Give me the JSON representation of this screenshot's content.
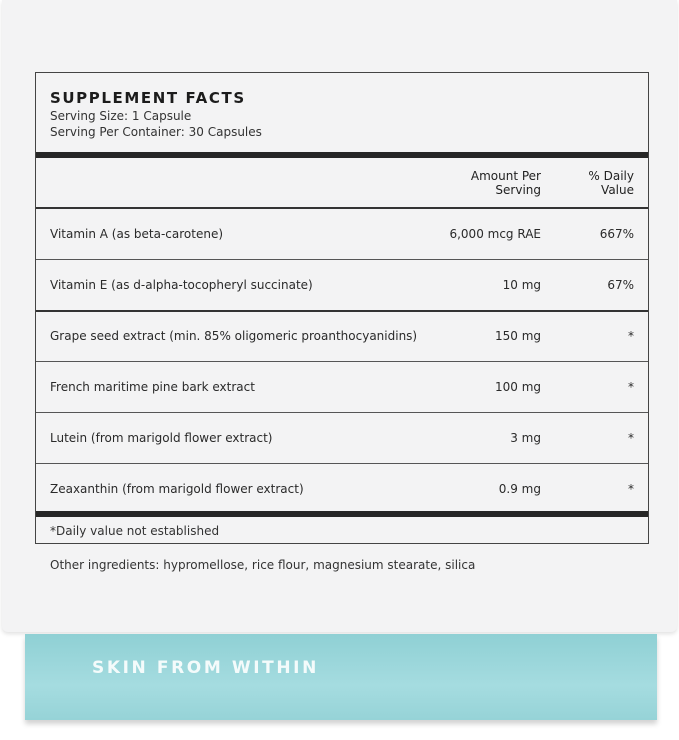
{
  "label": {
    "title": "SUPPLEMENT FACTS",
    "serving_size": "Serving Size: 1 Capsule",
    "servings_per_container": "Serving Per Container: 30 Capsules",
    "columns": {
      "amount_line1": "Amount Per",
      "amount_line2": "Serving",
      "dv_line1": "% Daily",
      "dv_line2": "Value"
    },
    "rows": [
      {
        "name": "Vitamin A (as beta-carotene)",
        "amount": "6,000 mcg RAE",
        "dv": "667%"
      },
      {
        "name": "Vitamin E (as d-alpha-tocopheryl succinate)",
        "amount": "10 mg",
        "dv": "67%"
      },
      {
        "name": "Grape seed extract (min. 85% oligomeric proanthocyanidins)",
        "amount": "150 mg",
        "dv": "*"
      },
      {
        "name": "French maritime pine bark extract",
        "amount": "100 mg",
        "dv": "*"
      },
      {
        "name": "Lutein (from marigold flower extract)",
        "amount": "3 mg",
        "dv": "*"
      },
      {
        "name": "Zeaxanthin (from marigold flower extract)",
        "amount": "0.9 mg",
        "dv": "*"
      }
    ],
    "footnote": "*Daily value not established",
    "other_ingredients": "Other ingredients: hypromellose, rice flour, magnesium stearate, silica"
  },
  "band": {
    "tagline": "SKIN FROM WITHIN",
    "color": "#9dd8dc"
  }
}
